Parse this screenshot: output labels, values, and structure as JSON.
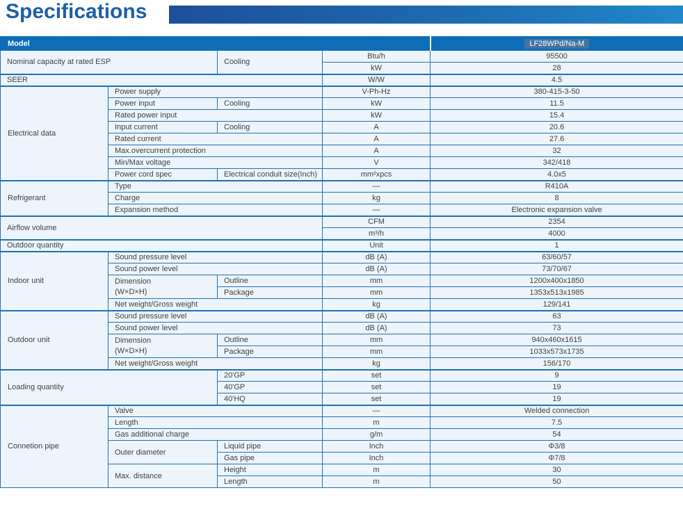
{
  "page": {
    "title": "Specifications"
  },
  "colors": {
    "title_text": "#1d5fa8",
    "accent_bar_start": "#1d4f9c",
    "accent_bar_end": "#2187ca",
    "header_bg": "#0d6db8",
    "model_highlight": "#44749f",
    "grid_border": "#2070b2",
    "row_bg": "#edf4fb"
  },
  "table": {
    "header": {
      "label": "Model",
      "model": "LF28WPd/Na-M"
    },
    "rows": [
      {
        "label": "Nominal capacity at rated ESP",
        "sub": "Cooling",
        "unit": "Btu/h",
        "value": "95500"
      },
      {
        "unit": "kW",
        "value": "28"
      },
      {
        "label": "SEER",
        "unit": "W/W",
        "value": "4.5"
      },
      {
        "section": "Electrical data",
        "label": "Power supply",
        "unit": "V-Ph-Hz",
        "value": "380-415-3-50"
      },
      {
        "label": "Power input",
        "sub": "Cooling",
        "unit": "kW",
        "value": "11.5"
      },
      {
        "label": "Rated power input",
        "unit": "kW",
        "value": "15.4"
      },
      {
        "label": "Input current",
        "sub": "Cooling",
        "unit": "A",
        "value": "20.6"
      },
      {
        "label": "Rated current",
        "unit": "A",
        "value": "27.6"
      },
      {
        "label": "Max.overcurrent protection",
        "unit": "A",
        "value": "32"
      },
      {
        "label": "Min/Max voltage",
        "unit": "V",
        "value": "342/418"
      },
      {
        "label": "Power cord spec",
        "sub": "Electrical conduit size(Inch)",
        "unit": "mm²xpcs",
        "value": "4.0x5"
      },
      {
        "section": "Refrigerant",
        "label": "Type",
        "unit": "—",
        "value": "R410A"
      },
      {
        "label": "Charge",
        "unit": "kg",
        "value": "8"
      },
      {
        "label": "Expansion method",
        "unit": "—",
        "value": "Electronic expansion valve"
      },
      {
        "label": "Airflow volume",
        "unit": "CFM",
        "value": "2354"
      },
      {
        "unit": "m³/h",
        "value": "4000"
      },
      {
        "label": "Outdoor quantity",
        "unit": "Unit",
        "value": "1"
      },
      {
        "section": "Indoor unit",
        "label": "Sound pressure level",
        "unit": "dB (A)",
        "value": "63/60/57"
      },
      {
        "label": "Sound power level",
        "unit": "dB (A)",
        "value": "73/70/67"
      },
      {
        "label": "Dimension",
        "label2": "(W×D×H)",
        "sub": "Outline",
        "unit": "mm",
        "value": "1200x400x1850"
      },
      {
        "sub": "Package",
        "unit": "mm",
        "value": "1353x513x1985"
      },
      {
        "label": "Net weight/Gross weight",
        "unit": "kg",
        "value": "129/141"
      },
      {
        "section": "Outdoor unit",
        "label": "Sound pressure level",
        "unit": "dB (A)",
        "value": "63"
      },
      {
        "label": "Sound power level",
        "unit": "dB (A)",
        "value": "73"
      },
      {
        "label": "Dimension",
        "label2": "(W×D×H)",
        "sub": "Outline",
        "unit": "mm",
        "value": "940x460x1615"
      },
      {
        "sub": "Package",
        "unit": "mm",
        "value": "1033x573x1735"
      },
      {
        "label": "Net weight/Gross weight",
        "unit": "kg",
        "value": "156/170"
      },
      {
        "section": "Loading quantity",
        "sub": "20'GP",
        "unit": "set",
        "value": "9"
      },
      {
        "sub": "40'GP",
        "unit": "set",
        "value": "19"
      },
      {
        "sub": "40'HQ",
        "unit": "set",
        "value": "19"
      },
      {
        "section": "Connetion pipe",
        "label": "Valve",
        "unit": "—",
        "value": "Welded connection"
      },
      {
        "label": "Length",
        "unit": "m",
        "value": "7.5"
      },
      {
        "label": "Gas additional charge",
        "unit": "g/m",
        "value": "54"
      },
      {
        "label": "Outer diameter",
        "sub": "Liquid pipe",
        "unit": "Inch",
        "value": "Φ3/8"
      },
      {
        "sub": "Gas pipe",
        "unit": "Inch",
        "value": "Φ7/8"
      },
      {
        "label": "Max. distance",
        "sub": "Height",
        "unit": "m",
        "value": "30"
      },
      {
        "sub": "Length",
        "unit": "m",
        "value": "50"
      }
    ]
  }
}
